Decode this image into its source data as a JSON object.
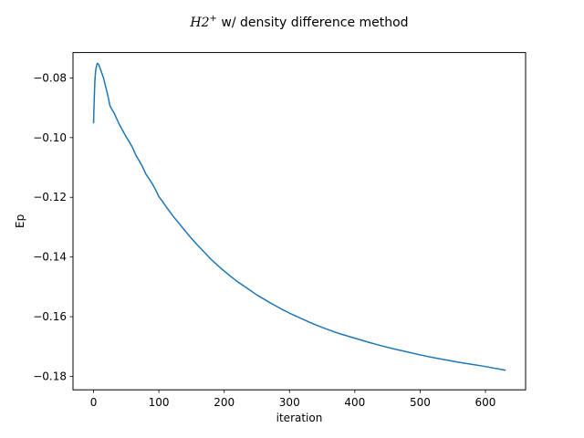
{
  "chart_data": {
    "type": "line",
    "title": {
      "math_main": "H2",
      "math_sup": "+",
      "rest": " w/ density difference method"
    },
    "xlabel": "iteration",
    "ylabel": "Ep",
    "xlim": [
      -31.5,
      661.5
    ],
    "ylim": [
      -0.1845,
      -0.0715
    ],
    "xticks": [
      0,
      100,
      200,
      300,
      400,
      500,
      600
    ],
    "xtick_labels": [
      "0",
      "100",
      "200",
      "300",
      "400",
      "500",
      "600"
    ],
    "yticks": [
      -0.18,
      -0.16,
      -0.14,
      -0.12,
      -0.1,
      -0.08
    ],
    "ytick_labels": [
      "−0.18",
      "−0.16",
      "−0.14",
      "−0.12",
      "−0.10",
      "−0.08"
    ],
    "grid": false,
    "series": [
      {
        "color": "#1f77b4",
        "x": [
          0,
          1,
          2,
          3,
          4,
          5,
          6,
          8,
          10,
          12,
          15,
          18,
          22,
          25,
          28,
          32,
          35,
          40,
          45,
          50,
          55,
          60,
          65,
          70,
          75,
          80,
          85,
          90,
          95,
          100,
          105,
          110,
          115,
          120,
          125,
          130,
          140,
          150,
          160,
          170,
          180,
          190,
          200,
          210,
          220,
          230,
          240,
          250,
          260,
          270,
          280,
          290,
          300,
          310,
          320,
          330,
          340,
          350,
          360,
          370,
          380,
          400,
          420,
          440,
          460,
          480,
          500,
          520,
          540,
          560,
          580,
          600,
          630
        ],
        "y": [
          -0.095,
          -0.087,
          -0.081,
          -0.078,
          -0.0765,
          -0.0755,
          -0.0751,
          -0.0755,
          -0.0768,
          -0.078,
          -0.0798,
          -0.0825,
          -0.086,
          -0.0893,
          -0.0905,
          -0.092,
          -0.0935,
          -0.0958,
          -0.0978,
          -0.0998,
          -0.1015,
          -0.1035,
          -0.106,
          -0.1078,
          -0.1098,
          -0.1122,
          -0.1138,
          -0.1155,
          -0.1175,
          -0.1198,
          -0.1212,
          -0.1228,
          -0.1243,
          -0.1258,
          -0.1272,
          -0.1285,
          -0.1312,
          -0.1338,
          -0.1362,
          -0.1385,
          -0.1408,
          -0.1428,
          -0.1447,
          -0.1465,
          -0.1482,
          -0.1497,
          -0.1512,
          -0.1527,
          -0.154,
          -0.1553,
          -0.1565,
          -0.1577,
          -0.1588,
          -0.1598,
          -0.1608,
          -0.1618,
          -0.1627,
          -0.1636,
          -0.1644,
          -0.1652,
          -0.1659,
          -0.1672,
          -0.1685,
          -0.1697,
          -0.1708,
          -0.1718,
          -0.1728,
          -0.1737,
          -0.1745,
          -0.1753,
          -0.176,
          -0.1767,
          -0.1779
        ]
      }
    ]
  }
}
